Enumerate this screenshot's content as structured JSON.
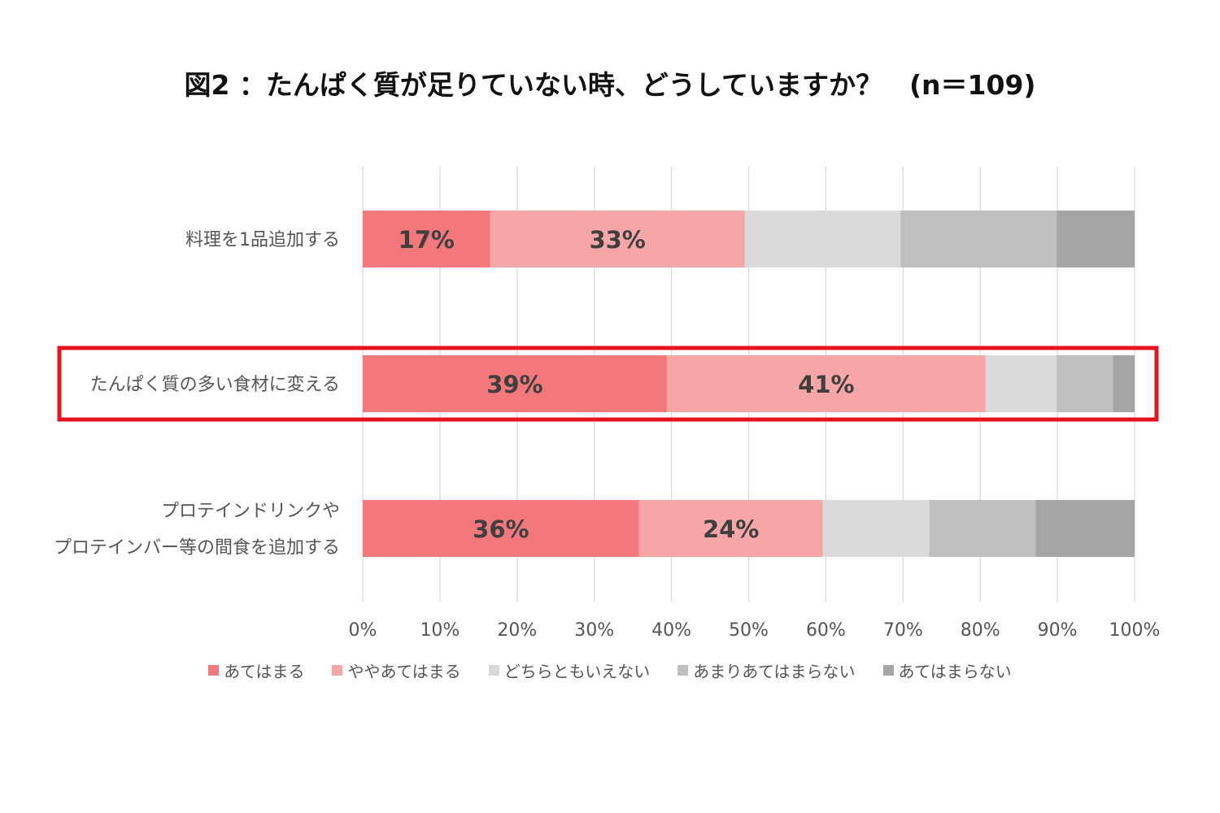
{
  "chart_data": {
    "type": "bar",
    "orientation": "horizontal",
    "stacked": true,
    "title": "図2 ：たんぱく質が足りていない時、どうしていますか？　(n＝109)",
    "categories": [
      "料理を1品追加する",
      "たんぱく質の多い食材に変える",
      "プロテインドリンクや\nプロテインバー等の間食を追加する"
    ],
    "category_lines": [
      [
        "料理を1品追加する"
      ],
      [
        "たんぱく質の多い食材に変える"
      ],
      [
        "プロテインドリンクや",
        "プロテインバー等の間食を追加する"
      ]
    ],
    "series": [
      {
        "name": "あてはまる",
        "color": "#F2787C",
        "values": [
          16.5,
          39.4,
          35.8
        ],
        "labels": [
          "17%",
          "39%",
          "36%"
        ]
      },
      {
        "name": "ややあてはまる",
        "color": "#F7A6A8",
        "values": [
          33.0,
          41.3,
          23.8
        ],
        "labels": [
          "33%",
          "41%",
          "24%"
        ]
      },
      {
        "name": "どちらともいえない",
        "color": "#DADADA",
        "values": [
          20.2,
          9.2,
          13.8
        ],
        "labels": []
      },
      {
        "name": "あまりあてはまらない",
        "color": "#BFBFBF",
        "values": [
          20.2,
          7.3,
          13.8
        ],
        "labels": []
      },
      {
        "name": "あてはまらない",
        "color": "#A5A5A5",
        "values": [
          10.1,
          2.8,
          12.8
        ],
        "labels": []
      }
    ],
    "xlim": [
      0,
      100
    ],
    "xticks": [
      "0%",
      "10%",
      "20%",
      "30%",
      "40%",
      "50%",
      "60%",
      "70%",
      "80%",
      "90%",
      "100%"
    ],
    "gridlines": true,
    "legend_position": "bottom",
    "highlight": {
      "category_index": 1,
      "color": "#E8141B"
    }
  }
}
